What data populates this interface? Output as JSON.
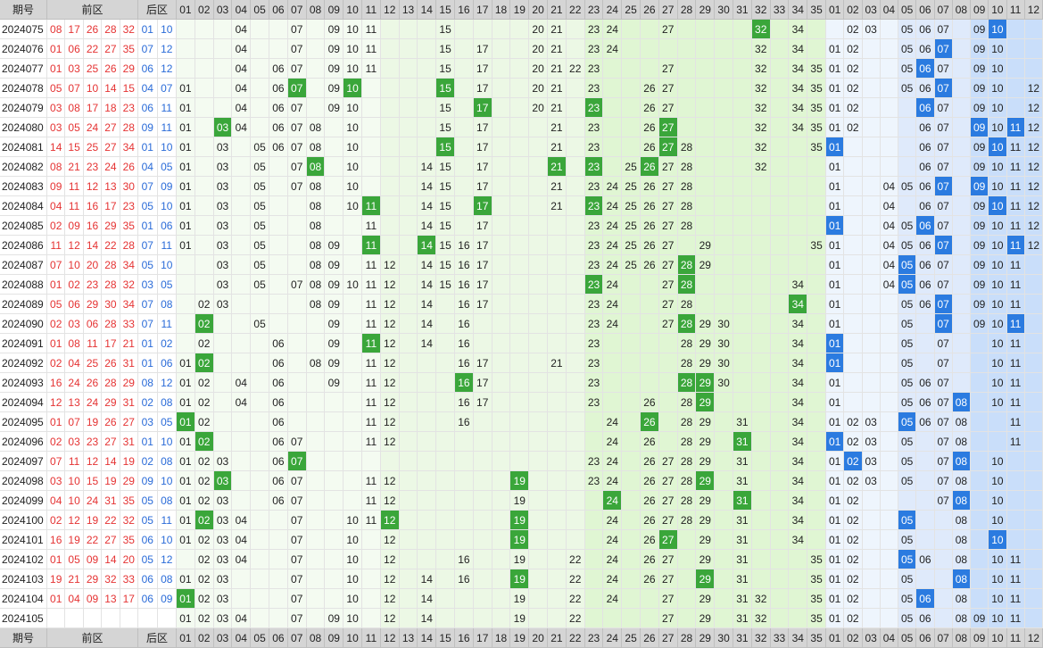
{
  "header": {
    "issue_label": "期号",
    "front_label": "前区",
    "back_label": "后区",
    "front_nums": [
      "01",
      "02",
      "03",
      "04",
      "05",
      "06",
      "07",
      "08",
      "09",
      "10",
      "11",
      "12",
      "13",
      "14",
      "15",
      "16",
      "17",
      "18",
      "19",
      "20",
      "21",
      "22",
      "23",
      "24",
      "25",
      "26",
      "27",
      "28",
      "29",
      "30",
      "31",
      "32",
      "33",
      "34",
      "35"
    ],
    "back_nums": [
      "01",
      "02",
      "03",
      "04",
      "05",
      "06",
      "07",
      "08",
      "09",
      "10",
      "11",
      "12"
    ]
  },
  "rows": [
    {
      "issue": "2024075",
      "front": [
        "08",
        "17",
        "26",
        "28",
        "32"
      ],
      "back": [
        "01",
        "10"
      ],
      "fz": [
        "04",
        "07",
        "09",
        "10",
        "11",
        "15",
        "20",
        "21",
        "23",
        "24",
        "27",
        "32",
        "34"
      ],
      "fh": [
        "32"
      ],
      "bz": [
        "02",
        "03",
        "05",
        "06",
        "07",
        "09",
        "10"
      ],
      "bh": [
        "10"
      ]
    },
    {
      "issue": "2024076",
      "front": [
        "01",
        "06",
        "22",
        "27",
        "35"
      ],
      "back": [
        "07",
        "12"
      ],
      "fz": [
        "04",
        "07",
        "09",
        "10",
        "11",
        "15",
        "17",
        "20",
        "21",
        "23",
        "24",
        "32",
        "34"
      ],
      "fh": [],
      "bz": [
        "01",
        "02",
        "05",
        "06",
        "07",
        "09",
        "10"
      ],
      "bh": [
        "07"
      ]
    },
    {
      "issue": "2024077",
      "front": [
        "01",
        "03",
        "25",
        "26",
        "29"
      ],
      "back": [
        "06",
        "12"
      ],
      "fz": [
        "04",
        "06",
        "07",
        "09",
        "10",
        "11",
        "15",
        "17",
        "20",
        "21",
        "22",
        "23",
        "27",
        "32",
        "34",
        "35"
      ],
      "fh": [],
      "bz": [
        "01",
        "02",
        "05",
        "06",
        "07",
        "09",
        "10"
      ],
      "bh": [
        "06"
      ]
    },
    {
      "issue": "2024078",
      "front": [
        "05",
        "07",
        "10",
        "14",
        "15"
      ],
      "back": [
        "04",
        "07"
      ],
      "fz": [
        "01",
        "04",
        "06",
        "07",
        "09",
        "10",
        "15",
        "17",
        "20",
        "21",
        "23",
        "26",
        "27",
        "32",
        "34",
        "35"
      ],
      "fh": [
        "07",
        "10",
        "15"
      ],
      "bz": [
        "01",
        "02",
        "05",
        "06",
        "07",
        "09",
        "10",
        "12"
      ],
      "bh": [
        "07"
      ]
    },
    {
      "issue": "2024079",
      "front": [
        "03",
        "08",
        "17",
        "18",
        "23"
      ],
      "back": [
        "06",
        "11"
      ],
      "fz": [
        "01",
        "04",
        "06",
        "07",
        "09",
        "10",
        "15",
        "17",
        "20",
        "21",
        "23",
        "26",
        "27",
        "32",
        "34",
        "35"
      ],
      "fh": [
        "17",
        "23"
      ],
      "bz": [
        "01",
        "02",
        "06",
        "07",
        "09",
        "10",
        "12"
      ],
      "bh": [
        "06"
      ]
    },
    {
      "issue": "2024080",
      "front": [
        "03",
        "05",
        "24",
        "27",
        "28"
      ],
      "back": [
        "09",
        "11"
      ],
      "fz": [
        "01",
        "03",
        "04",
        "06",
        "07",
        "08",
        "10",
        "15",
        "17",
        "21",
        "23",
        "26",
        "27",
        "32",
        "34",
        "35"
      ],
      "fh": [
        "03",
        "27"
      ],
      "bz": [
        "01",
        "02",
        "06",
        "07",
        "09",
        "10",
        "11",
        "12"
      ],
      "bh": [
        "09",
        "11"
      ]
    },
    {
      "issue": "2024081",
      "front": [
        "14",
        "15",
        "25",
        "27",
        "34"
      ],
      "back": [
        "01",
        "10"
      ],
      "fz": [
        "01",
        "03",
        "05",
        "06",
        "07",
        "08",
        "10",
        "15",
        "17",
        "21",
        "23",
        "26",
        "27",
        "28",
        "32",
        "35"
      ],
      "fh": [
        "15",
        "27"
      ],
      "bz": [
        "01",
        "06",
        "07",
        "09",
        "10",
        "11",
        "12"
      ],
      "bh": [
        "01",
        "10"
      ]
    },
    {
      "issue": "2024082",
      "front": [
        "08",
        "21",
        "23",
        "24",
        "26"
      ],
      "back": [
        "04",
        "05"
      ],
      "fz": [
        "01",
        "03",
        "05",
        "07",
        "08",
        "10",
        "14",
        "15",
        "17",
        "21",
        "23",
        "25",
        "26",
        "27",
        "28",
        "32"
      ],
      "fh": [
        "08",
        "21",
        "23",
        "26"
      ],
      "bz": [
        "01",
        "06",
        "07",
        "09",
        "10",
        "11",
        "12"
      ],
      "bh": []
    },
    {
      "issue": "2024083",
      "front": [
        "09",
        "11",
        "12",
        "13",
        "30"
      ],
      "back": [
        "07",
        "09"
      ],
      "fz": [
        "01",
        "03",
        "05",
        "07",
        "08",
        "10",
        "14",
        "15",
        "17",
        "21",
        "23",
        "24",
        "25",
        "26",
        "27",
        "28"
      ],
      "fh": [],
      "bz": [
        "01",
        "04",
        "05",
        "06",
        "07",
        "09",
        "10",
        "11",
        "12"
      ],
      "bh": [
        "07",
        "09"
      ]
    },
    {
      "issue": "2024084",
      "front": [
        "04",
        "11",
        "16",
        "17",
        "23"
      ],
      "back": [
        "05",
        "10"
      ],
      "fz": [
        "01",
        "03",
        "05",
        "08",
        "10",
        "11",
        "14",
        "15",
        "17",
        "21",
        "23",
        "24",
        "25",
        "26",
        "27",
        "28"
      ],
      "fh": [
        "11",
        "17",
        "23"
      ],
      "bz": [
        "01",
        "04",
        "06",
        "07",
        "09",
        "10",
        "11",
        "12"
      ],
      "bh": [
        "10"
      ]
    },
    {
      "issue": "2024085",
      "front": [
        "02",
        "09",
        "16",
        "29",
        "35"
      ],
      "back": [
        "01",
        "06"
      ],
      "fz": [
        "01",
        "03",
        "05",
        "08",
        "11",
        "14",
        "15",
        "17",
        "23",
        "24",
        "25",
        "26",
        "27",
        "28"
      ],
      "fh": [],
      "bz": [
        "01",
        "04",
        "05",
        "06",
        "07",
        "09",
        "10",
        "11",
        "12"
      ],
      "bh": [
        "01",
        "06"
      ]
    },
    {
      "issue": "2024086",
      "front": [
        "11",
        "12",
        "14",
        "22",
        "28"
      ],
      "back": [
        "07",
        "11"
      ],
      "fz": [
        "01",
        "03",
        "05",
        "08",
        "09",
        "11",
        "14",
        "15",
        "16",
        "17",
        "23",
        "24",
        "25",
        "26",
        "27",
        "29",
        "35"
      ],
      "fh": [
        "11",
        "14"
      ],
      "bz": [
        "01",
        "04",
        "05",
        "06",
        "07",
        "09",
        "10",
        "11",
        "12"
      ],
      "bh": [
        "07",
        "11"
      ]
    },
    {
      "issue": "2024087",
      "front": [
        "07",
        "10",
        "20",
        "28",
        "34"
      ],
      "back": [
        "05",
        "10"
      ],
      "fz": [
        "03",
        "05",
        "08",
        "09",
        "11",
        "12",
        "14",
        "15",
        "16",
        "17",
        "23",
        "24",
        "25",
        "26",
        "27",
        "28",
        "29"
      ],
      "fh": [
        "28"
      ],
      "bz": [
        "01",
        "04",
        "05",
        "06",
        "07",
        "09",
        "10",
        "11"
      ],
      "bh": [
        "05"
      ]
    },
    {
      "issue": "2024088",
      "front": [
        "01",
        "02",
        "23",
        "28",
        "32"
      ],
      "back": [
        "03",
        "05"
      ],
      "fz": [
        "03",
        "05",
        "07",
        "08",
        "09",
        "10",
        "11",
        "12",
        "14",
        "15",
        "16",
        "17",
        "23",
        "24",
        "27",
        "28",
        "34"
      ],
      "fh": [
        "23",
        "28"
      ],
      "bz": [
        "01",
        "04",
        "05",
        "06",
        "07",
        "09",
        "10",
        "11"
      ],
      "bh": [
        "05"
      ]
    },
    {
      "issue": "2024089",
      "front": [
        "05",
        "06",
        "29",
        "30",
        "34"
      ],
      "back": [
        "07",
        "08"
      ],
      "fz": [
        "02",
        "03",
        "08",
        "09",
        "11",
        "12",
        "14",
        "16",
        "17",
        "23",
        "24",
        "27",
        "28",
        "34"
      ],
      "fh": [
        "34"
      ],
      "bz": [
        "01",
        "05",
        "06",
        "07",
        "09",
        "10",
        "11"
      ],
      "bh": [
        "07"
      ]
    },
    {
      "issue": "2024090",
      "front": [
        "02",
        "03",
        "06",
        "28",
        "33"
      ],
      "back": [
        "07",
        "11"
      ],
      "fz": [
        "02",
        "05",
        "09",
        "11",
        "12",
        "14",
        "16",
        "23",
        "24",
        "27",
        "28",
        "29",
        "30",
        "34"
      ],
      "fh": [
        "02",
        "28"
      ],
      "bz": [
        "01",
        "05",
        "07",
        "09",
        "10",
        "11"
      ],
      "bh": [
        "07",
        "11"
      ]
    },
    {
      "issue": "2024091",
      "front": [
        "01",
        "08",
        "11",
        "17",
        "21"
      ],
      "back": [
        "01",
        "02"
      ],
      "fz": [
        "02",
        "06",
        "09",
        "11",
        "12",
        "14",
        "16",
        "23",
        "28",
        "29",
        "30",
        "34"
      ],
      "fh": [
        "11"
      ],
      "bz": [
        "01",
        "05",
        "07",
        "10",
        "11"
      ],
      "bh": [
        "01"
      ]
    },
    {
      "issue": "2024092",
      "front": [
        "02",
        "04",
        "25",
        "26",
        "31"
      ],
      "back": [
        "01",
        "06"
      ],
      "fz": [
        "01",
        "02",
        "06",
        "08",
        "09",
        "11",
        "12",
        "16",
        "17",
        "21",
        "23",
        "28",
        "29",
        "30",
        "34"
      ],
      "fh": [
        "02"
      ],
      "bz": [
        "01",
        "05",
        "07",
        "10",
        "11"
      ],
      "bh": [
        "01"
      ]
    },
    {
      "issue": "2024093",
      "front": [
        "16",
        "24",
        "26",
        "28",
        "29"
      ],
      "back": [
        "08",
        "12"
      ],
      "fz": [
        "01",
        "02",
        "04",
        "06",
        "09",
        "11",
        "12",
        "16",
        "17",
        "23",
        "28",
        "29",
        "30",
        "34"
      ],
      "fh": [
        "16",
        "28",
        "29"
      ],
      "bz": [
        "01",
        "05",
        "06",
        "07",
        "10",
        "11"
      ],
      "bh": []
    },
    {
      "issue": "2024094",
      "front": [
        "12",
        "13",
        "24",
        "29",
        "31"
      ],
      "back": [
        "02",
        "08"
      ],
      "fz": [
        "01",
        "02",
        "04",
        "06",
        "11",
        "12",
        "16",
        "17",
        "23",
        "26",
        "28",
        "29",
        "34"
      ],
      "fh": [
        "29"
      ],
      "bz": [
        "01",
        "05",
        "06",
        "07",
        "08",
        "10",
        "11"
      ],
      "bh": [
        "08"
      ]
    },
    {
      "issue": "2024095",
      "front": [
        "01",
        "07",
        "19",
        "26",
        "27"
      ],
      "back": [
        "03",
        "05"
      ],
      "fz": [
        "01",
        "02",
        "06",
        "11",
        "12",
        "16",
        "24",
        "26",
        "28",
        "29",
        "31",
        "34"
      ],
      "fh": [
        "01",
        "26"
      ],
      "bz": [
        "01",
        "02",
        "03",
        "05",
        "06",
        "07",
        "08",
        "11"
      ],
      "bh": [
        "05"
      ]
    },
    {
      "issue": "2024096",
      "front": [
        "02",
        "03",
        "23",
        "27",
        "31"
      ],
      "back": [
        "01",
        "10"
      ],
      "fz": [
        "01",
        "02",
        "06",
        "07",
        "11",
        "12",
        "24",
        "26",
        "28",
        "29",
        "31",
        "34"
      ],
      "fh": [
        "02",
        "31"
      ],
      "bz": [
        "01",
        "02",
        "03",
        "05",
        "07",
        "08",
        "11"
      ],
      "bh": [
        "01"
      ]
    },
    {
      "issue": "2024097",
      "front": [
        "07",
        "11",
        "12",
        "14",
        "19"
      ],
      "back": [
        "02",
        "08"
      ],
      "fz": [
        "01",
        "02",
        "03",
        "06",
        "07",
        "23",
        "24",
        "26",
        "27",
        "28",
        "29",
        "31",
        "34"
      ],
      "fh": [
        "07"
      ],
      "bz": [
        "01",
        "02",
        "03",
        "05",
        "07",
        "08",
        "10"
      ],
      "bh": [
        "02",
        "08"
      ]
    },
    {
      "issue": "2024098",
      "front": [
        "03",
        "10",
        "15",
        "19",
        "29"
      ],
      "back": [
        "09",
        "10"
      ],
      "fz": [
        "01",
        "02",
        "03",
        "06",
        "07",
        "11",
        "12",
        "19",
        "23",
        "24",
        "26",
        "27",
        "28",
        "29",
        "31",
        "34"
      ],
      "fh": [
        "03",
        "19",
        "29"
      ],
      "bz": [
        "01",
        "02",
        "03",
        "05",
        "07",
        "08",
        "10"
      ],
      "bh": []
    },
    {
      "issue": "2024099",
      "front": [
        "04",
        "10",
        "24",
        "31",
        "35"
      ],
      "back": [
        "05",
        "08"
      ],
      "fz": [
        "01",
        "02",
        "03",
        "06",
        "07",
        "11",
        "12",
        "19",
        "24",
        "26",
        "27",
        "28",
        "29",
        "31",
        "34"
      ],
      "fh": [
        "24",
        "31"
      ],
      "bz": [
        "01",
        "02",
        "07",
        "08",
        "10"
      ],
      "bh": [
        "08"
      ]
    },
    {
      "issue": "2024100",
      "front": [
        "02",
        "12",
        "19",
        "22",
        "32"
      ],
      "back": [
        "05",
        "11"
      ],
      "fz": [
        "01",
        "02",
        "03",
        "04",
        "07",
        "10",
        "11",
        "12",
        "19",
        "24",
        "26",
        "27",
        "28",
        "29",
        "31",
        "34"
      ],
      "fh": [
        "02",
        "12",
        "19"
      ],
      "bz": [
        "01",
        "02",
        "05",
        "08",
        "10"
      ],
      "bh": [
        "05"
      ]
    },
    {
      "issue": "2024101",
      "front": [
        "16",
        "19",
        "22",
        "27",
        "35"
      ],
      "back": [
        "06",
        "10"
      ],
      "fz": [
        "01",
        "02",
        "03",
        "04",
        "07",
        "10",
        "12",
        "19",
        "24",
        "26",
        "27",
        "29",
        "31",
        "34"
      ],
      "fh": [
        "19",
        "27"
      ],
      "bz": [
        "01",
        "02",
        "05",
        "08",
        "10"
      ],
      "bh": [
        "10"
      ]
    },
    {
      "issue": "2024102",
      "front": [
        "01",
        "05",
        "09",
        "14",
        "20"
      ],
      "back": [
        "05",
        "12"
      ],
      "fz": [
        "02",
        "03",
        "04",
        "07",
        "10",
        "12",
        "16",
        "19",
        "22",
        "24",
        "26",
        "27",
        "29",
        "31",
        "35"
      ],
      "fh": [],
      "bz": [
        "01",
        "02",
        "05",
        "06",
        "08",
        "10",
        "11"
      ],
      "bh": [
        "05"
      ]
    },
    {
      "issue": "2024103",
      "front": [
        "19",
        "21",
        "29",
        "32",
        "33"
      ],
      "back": [
        "06",
        "08"
      ],
      "fz": [
        "01",
        "02",
        "03",
        "07",
        "10",
        "12",
        "14",
        "16",
        "19",
        "22",
        "24",
        "26",
        "27",
        "29",
        "31",
        "35"
      ],
      "fh": [
        "19",
        "29"
      ],
      "bz": [
        "01",
        "02",
        "05",
        "08",
        "10",
        "11"
      ],
      "bh": [
        "08"
      ]
    },
    {
      "issue": "2024104",
      "front": [
        "01",
        "04",
        "09",
        "13",
        "17"
      ],
      "back": [
        "06",
        "09"
      ],
      "fz": [
        "01",
        "02",
        "03",
        "07",
        "10",
        "12",
        "14",
        "19",
        "22",
        "24",
        "27",
        "29",
        "31",
        "32",
        "35"
      ],
      "fh": [
        "01"
      ],
      "bz": [
        "01",
        "02",
        "05",
        "06",
        "08",
        "10",
        "11"
      ],
      "bh": [
        "06"
      ]
    },
    {
      "issue": "2024105",
      "front": [],
      "back": [],
      "fz": [
        "01",
        "02",
        "03",
        "04",
        "07",
        "09",
        "10",
        "12",
        "14",
        "19",
        "22",
        "27",
        "29",
        "31",
        "32",
        "35"
      ],
      "fh": [],
      "bz": [
        "01",
        "02",
        "05",
        "06",
        "08",
        "09",
        "10",
        "11"
      ],
      "bh": []
    }
  ],
  "colors": {
    "front_red": "#e53333",
    "back_blue": "#2a6bd8",
    "front_hit": "#3aa63a",
    "back_hit": "#2b7be0",
    "header_bg": "#d5d5d5"
  }
}
